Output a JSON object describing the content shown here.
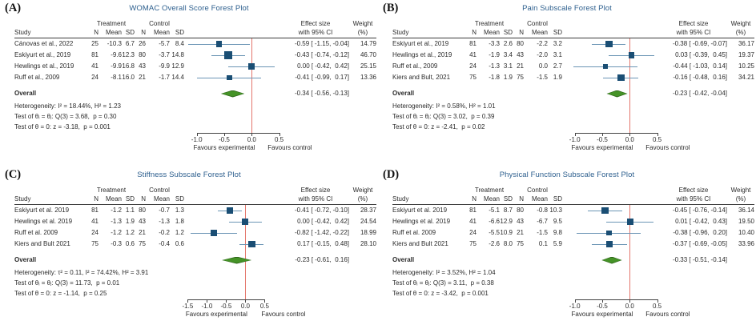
{
  "colors": {
    "title": "#2d5f8e",
    "marker": "#1a4e74",
    "ci_line": "#6b95b5",
    "diamond_fill": "#459327",
    "diamond_edge": "#2f671b",
    "ref_line": "#e4756b",
    "axis": "#444444",
    "text": "#2b2b2b"
  },
  "header": {
    "study": "Study",
    "treatment": "Treatment",
    "control": "Control",
    "n": "N",
    "mean": "Mean",
    "sd": "SD",
    "effect1": "Effect size",
    "effect2": "with 95% CI",
    "weight1": "Weight",
    "weight2": "(%)"
  },
  "chart_data": [
    {
      "type": "scatter",
      "variant": "forest-plot",
      "label": "(A)",
      "title": "WOMAC Overall Score Forest Plot",
      "axis": {
        "xmin": -1.2,
        "xmax": 0.55,
        "ref": 0,
        "tick_values": [
          -1.0,
          -0.5,
          0.0,
          0.5
        ],
        "tick_labels": [
          "-1.0",
          "-0.5",
          "0.0",
          "0.5"
        ],
        "left_label": "Favours experimental",
        "right_label": "Favours control"
      },
      "studies": [
        {
          "study": "Cánovas et al., 2022",
          "t_n": "25",
          "t_mean": "-10.3",
          "t_sd": "6.7",
          "c_n": "26",
          "c_mean": "-5.7",
          "c_sd": "8.4",
          "effect": -0.59,
          "ci_low": -1.15,
          "ci_high": -0.04,
          "effect_label": "-0.59 [ -1.15, -0.04]",
          "weight": 14.79,
          "weight_label": "14.79"
        },
        {
          "study": "Eskiyurt et al., 2019",
          "t_n": "81",
          "t_mean": "-9.6",
          "t_sd": "12.3",
          "c_n": "80",
          "c_mean": "-3.7",
          "c_sd": "14.8",
          "effect": -0.43,
          "ci_low": -0.74,
          "ci_high": -0.12,
          "effect_label": "-0.43 [ -0.74, -0.12]",
          "weight": 46.7,
          "weight_label": "46.70"
        },
        {
          "study": "Hewlings et al., 2019",
          "t_n": "41",
          "t_mean": "-9.9",
          "t_sd": "16.8",
          "c_n": "43",
          "c_mean": "-9.9",
          "c_sd": "12.9",
          "effect": 0.0,
          "ci_low": -0.42,
          "ci_high": 0.42,
          "effect_label": " 0.00 [ -0.42,  0.42]",
          "weight": 25.15,
          "weight_label": "25.15"
        },
        {
          "study": "Ruff et al., 2009",
          "t_n": "24",
          "t_mean": "-8.1",
          "t_sd": "16.0",
          "c_n": "21",
          "c_mean": "-1.7",
          "c_sd": "14.4",
          "effect": -0.41,
          "ci_low": -0.99,
          "ci_high": 0.17,
          "effect_label": "-0.41 [ -0.99,  0.17]",
          "weight": 13.36,
          "weight_label": "13.36"
        }
      ],
      "overall": {
        "label": "Overall",
        "effect": -0.34,
        "ci_low": -0.56,
        "ci_high": -0.13,
        "effect_label": "-0.34 [ -0.56, -0.13]"
      },
      "stats": [
        "Heterogeneity: I² = 18.44%, H² = 1.23",
        "Test of θᵢ = θⱼ: Q(3) = 3.68,  p = 0.30",
        "Test of θ = 0: z = -3.18,  p = 0.001"
      ]
    },
    {
      "type": "scatter",
      "variant": "forest-plot",
      "label": "(B)",
      "title": "Pain Subscale Forest Plot",
      "axis": {
        "xmin": -1.2,
        "xmax": 0.55,
        "ref": 0,
        "tick_values": [
          -1.0,
          -0.5,
          0.0,
          0.5
        ],
        "tick_labels": [
          "-1.0",
          "-0.5",
          "0.0",
          "0.5"
        ],
        "left_label": "Favours experimental",
        "right_label": "Favours control"
      },
      "studies": [
        {
          "study": "Eskiyurt et al., 2019",
          "t_n": "81",
          "t_mean": "-3.3",
          "t_sd": "2.6",
          "c_n": "80",
          "c_mean": "-2.2",
          "c_sd": "3.2",
          "effect": -0.38,
          "ci_low": -0.69,
          "ci_high": -0.07,
          "effect_label": "-0.38 [ -0.69, -0.07]",
          "weight": 36.17,
          "weight_label": "36.17"
        },
        {
          "study": "Hewlings et al., 2019",
          "t_n": "41",
          "t_mean": "-1.9",
          "t_sd": "3.4",
          "c_n": "43",
          "c_mean": "-2.0",
          "c_sd": "3.1",
          "effect": 0.03,
          "ci_low": -0.39,
          "ci_high": 0.45,
          "effect_label": " 0.03 [ -0.39,  0.45]",
          "weight": 19.37,
          "weight_label": "19.37"
        },
        {
          "study": "Ruff et al., 2009",
          "t_n": "24",
          "t_mean": "-1.3",
          "t_sd": "3.1",
          "c_n": "21",
          "c_mean": "0.0",
          "c_sd": "2.7",
          "effect": -0.44,
          "ci_low": -1.03,
          "ci_high": 0.14,
          "effect_label": "-0.44 [ -1.03,  0.14]",
          "weight": 10.25,
          "weight_label": "10.25"
        },
        {
          "study": "Kiers and Bult, 2021",
          "t_n": "75",
          "t_mean": "-1.8",
          "t_sd": "1.9",
          "c_n": "75",
          "c_mean": "-1.5",
          "c_sd": "1.9",
          "effect": -0.16,
          "ci_low": -0.48,
          "ci_high": 0.16,
          "effect_label": "-0.16 [ -0.48,  0.16]",
          "weight": 34.21,
          "weight_label": "34.21"
        }
      ],
      "overall": {
        "label": "Overall",
        "effect": -0.23,
        "ci_low": -0.42,
        "ci_high": -0.04,
        "effect_label": "-0.23 [ -0.42, -0.04]"
      },
      "stats": [
        "Heterogeneity: I² = 0.58%, H² = 1.01",
        "Test of θᵢ = θⱼ: Q(3) = 3.02,  p = 0.39",
        "Test of θ = 0: z = -2.41,  p = 0.02"
      ]
    },
    {
      "type": "scatter",
      "variant": "forest-plot",
      "label": "(C)",
      "title": "Stiffness Subscale Forest Plot",
      "axis": {
        "xmin": -1.55,
        "xmax": 0.95,
        "ref": 0,
        "tick_values": [
          -1.5,
          -1.0,
          -0.5,
          0.0,
          0.5
        ],
        "tick_labels": [
          "-1.5",
          "-1.0",
          "-0.5",
          "0.0",
          "0.5"
        ],
        "left_label": "Favours experimental",
        "right_label": "Favours control"
      },
      "studies": [
        {
          "study": "Eskiyurt et al. 2019",
          "t_n": "81",
          "t_mean": "-1.2",
          "t_sd": "1.1",
          "c_n": "80",
          "c_mean": "-0.7",
          "c_sd": "1.3",
          "effect": -0.41,
          "ci_low": -0.72,
          "ci_high": -0.1,
          "effect_label": "-0.41 [ -0.72, -0.10]",
          "weight": 28.37,
          "weight_label": "28.37"
        },
        {
          "study": "Hewlings et al. 2019",
          "t_n": "41",
          "t_mean": "-1.3",
          "t_sd": "1.9",
          "c_n": "43",
          "c_mean": "-1.3",
          "c_sd": "1.8",
          "effect": 0.0,
          "ci_low": -0.42,
          "ci_high": 0.42,
          "effect_label": " 0.00 [ -0.42,  0.42]",
          "weight": 24.54,
          "weight_label": "24.54"
        },
        {
          "study": "Ruff et al. 2009",
          "t_n": "24",
          "t_mean": "-1.2",
          "t_sd": "1.2",
          "c_n": "21",
          "c_mean": "-0.2",
          "c_sd": "1.2",
          "effect": -0.82,
          "ci_low": -1.42,
          "ci_high": -0.22,
          "effect_label": "-0.82 [ -1.42, -0.22]",
          "weight": 18.99,
          "weight_label": "18.99"
        },
        {
          "study": "Kiers and Bult 2021",
          "t_n": "75",
          "t_mean": "-0.3",
          "t_sd": "0.6",
          "c_n": "75",
          "c_mean": "-0.4",
          "c_sd": "0.6",
          "effect": 0.17,
          "ci_low": -0.15,
          "ci_high": 0.48,
          "effect_label": " 0.17 [ -0.15,  0.48]",
          "weight": 28.1,
          "weight_label": "28.10"
        }
      ],
      "overall": {
        "label": "Overall",
        "effect": -0.23,
        "ci_low": -0.61,
        "ci_high": 0.16,
        "effect_label": "-0.23 [ -0.61,  0.16]"
      },
      "stats": [
        "Heterogeneity: τ² = 0.11, I² = 74.42%, H² = 3.91",
        "Test of θᵢ = θⱼ: Q(3) = 11.73,  p = 0.01",
        "Test of θ = 0: z = -1.14,  p = 0.25"
      ]
    },
    {
      "type": "scatter",
      "variant": "forest-plot",
      "label": "(D)",
      "title": "Physical Function Subscale Forest Plot",
      "axis": {
        "xmin": -1.2,
        "xmax": 0.55,
        "ref": 0,
        "tick_values": [
          -1.0,
          -0.5,
          0.0,
          0.5
        ],
        "tick_labels": [
          "-1.0",
          "-0.5",
          "0.0",
          "0.5"
        ],
        "left_label": "Favours experimental",
        "right_label": "Favours control"
      },
      "studies": [
        {
          "study": "Eskiyurt et al. 2019",
          "t_n": "81",
          "t_mean": "-5.1",
          "t_sd": "8.7",
          "c_n": "80",
          "c_mean": "-0.8",
          "c_sd": "10.3",
          "effect": -0.45,
          "ci_low": -0.76,
          "ci_high": -0.14,
          "effect_label": "-0.45 [ -0.76, -0.14]",
          "weight": 36.14,
          "weight_label": "36.14"
        },
        {
          "study": "Hewlings et al. 2019",
          "t_n": "41",
          "t_mean": "-6.6",
          "t_sd": "12.9",
          "c_n": "43",
          "c_mean": "-6.7",
          "c_sd": "9.5",
          "effect": 0.01,
          "ci_low": -0.42,
          "ci_high": 0.43,
          "effect_label": " 0.01 [ -0.42,  0.43]",
          "weight": 19.5,
          "weight_label": "19.50"
        },
        {
          "study": "Ruff et al. 2009",
          "t_n": "24",
          "t_mean": "-5.5",
          "t_sd": "10.9",
          "c_n": "21",
          "c_mean": "-1.5",
          "c_sd": "9.8",
          "effect": -0.38,
          "ci_low": -0.96,
          "ci_high": 0.2,
          "effect_label": "-0.38 [ -0.96,  0.20]",
          "weight": 10.4,
          "weight_label": "10.40"
        },
        {
          "study": "Kiers and Bult 2021",
          "t_n": "75",
          "t_mean": "-2.6",
          "t_sd": "8.0",
          "c_n": "75",
          "c_mean": "0.1",
          "c_sd": "5.9",
          "effect": -0.37,
          "ci_low": -0.69,
          "ci_high": -0.05,
          "effect_label": "-0.37 [ -0.69, -0.05]",
          "weight": 33.96,
          "weight_label": "33.96"
        }
      ],
      "overall": {
        "label": "Overall",
        "effect": -0.33,
        "ci_low": -0.51,
        "ci_high": -0.14,
        "effect_label": "-0.33 [ -0.51, -0.14]"
      },
      "stats": [
        "Heterogeneity: I² = 3.52%, H² = 1.04",
        "Test of θᵢ = θⱼ: Q(3) = 3.11,  p = 0.38",
        "Test of θ = 0: z = -3.42,  p = 0.001"
      ]
    }
  ]
}
